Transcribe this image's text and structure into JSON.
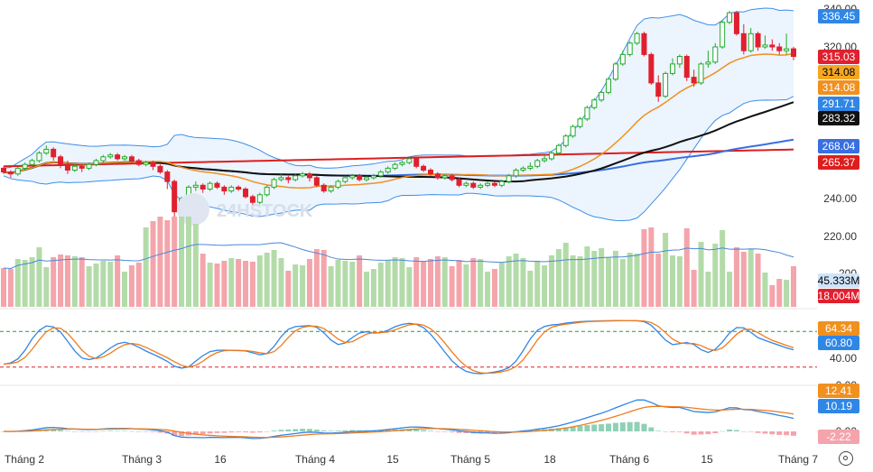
{
  "chart_data": {
    "type": "candlestick",
    "x_ticks": [
      "Tháng 2",
      "Tháng 3",
      "16",
      "Tháng 4",
      "15",
      "Tháng 5",
      "18",
      "Tháng 6",
      "15",
      "Tháng 7"
    ],
    "price_axis_ticks": [
      "340.00",
      "320.00",
      "240.00",
      "220.00"
    ],
    "watermark": "24HSTOCK",
    "colors": {
      "up": "#22ab2a",
      "down": "#e0202f",
      "bollinger": "#3d8fe8",
      "ma_orange": "#f0901e",
      "ma_black": "#111111",
      "ma_blue": "#3a6fe0",
      "ma_red": "#dd1e1e",
      "vol_up": "#b3dba9",
      "vol_down": "#f4a4ab",
      "vol_ma": "#4a88d8",
      "osc_blue": "#2f86e5",
      "osc_orange": "#f07b1c"
    },
    "price_labels": [
      {
        "value": "336.45",
        "bg": "#2f86e5",
        "fg": "#ffffff"
      },
      {
        "value": "315.03",
        "bg": "#e0202f",
        "fg": "#ffffff"
      },
      {
        "value": "314.08",
        "bg": "#f5a623",
        "fg": "#000000"
      },
      {
        "value": "314.08",
        "bg": "#f0901e",
        "fg": "#ffffff"
      },
      {
        "value": "291.71",
        "bg": "#2f86e5",
        "fg": "#ffffff"
      },
      {
        "value": "283.32",
        "bg": "#111111",
        "fg": "#ffffff"
      },
      {
        "value": "268.04",
        "bg": "#3a6fe0",
        "fg": "#ffffff"
      },
      {
        "value": "265.37",
        "bg": "#dd1e1e",
        "fg": "#ffffff"
      }
    ],
    "volume": {
      "axis_tick": "200",
      "labels": [
        {
          "value": "45.333M",
          "bg": "#cfe3fa",
          "fg": "#000000"
        },
        {
          "value": "18.004M",
          "bg": "#e0202f",
          "fg": "#ffffff"
        }
      ]
    },
    "stochastic": {
      "axis_ticks": [
        "40.00",
        "0.00"
      ],
      "labels": [
        {
          "value": "64.34",
          "bg": "#f0901e",
          "fg": "#ffffff"
        },
        {
          "value": "60.80",
          "bg": "#2f86e5",
          "fg": "#ffffff"
        }
      ]
    },
    "macd": {
      "axis_ticks": [
        "0.00"
      ],
      "labels": [
        {
          "value": "12.41",
          "bg": "#f0901e",
          "fg": "#ffffff"
        },
        {
          "value": "10.19",
          "bg": "#2f86e5",
          "fg": "#ffffff"
        },
        {
          "value": "-2.22",
          "bg": "#f4a4ab",
          "fg": "#ffffff"
        }
      ]
    },
    "candles": [
      [
        256,
        254,
        257,
        253
      ],
      [
        254,
        253,
        255,
        251
      ],
      [
        253,
        256,
        257,
        252
      ],
      [
        256,
        258,
        259,
        255
      ],
      [
        258,
        260,
        261,
        257
      ],
      [
        260,
        264,
        265,
        259
      ],
      [
        264,
        266,
        268,
        263
      ],
      [
        266,
        262,
        267,
        260
      ],
      [
        262,
        258,
        263,
        256
      ],
      [
        258,
        255,
        260,
        253
      ],
      [
        255,
        257,
        258,
        254
      ],
      [
        257,
        256,
        258,
        254
      ],
      [
        256,
        258,
        259,
        255
      ],
      [
        258,
        260,
        261,
        257
      ],
      [
        260,
        262,
        263,
        259
      ],
      [
        262,
        263,
        264,
        261
      ],
      [
        263,
        261,
        264,
        260
      ],
      [
        261,
        262,
        263,
        260
      ],
      [
        262,
        260,
        263,
        258
      ],
      [
        260,
        258,
        261,
        257
      ],
      [
        258,
        259,
        260,
        257
      ],
      [
        259,
        257,
        260,
        255
      ],
      [
        257,
        254,
        258,
        253
      ],
      [
        254,
        249,
        255,
        245
      ],
      [
        249,
        233,
        250,
        230
      ],
      [
        233,
        240,
        241,
        232
      ],
      [
        240,
        246,
        247,
        239
      ],
      [
        246,
        247,
        249,
        244
      ],
      [
        247,
        245,
        248,
        243
      ],
      [
        245,
        248,
        249,
        244
      ],
      [
        248,
        246,
        249,
        245
      ],
      [
        246,
        244,
        247,
        242
      ],
      [
        244,
        246,
        247,
        243
      ],
      [
        246,
        245,
        247,
        244
      ],
      [
        245,
        241,
        246,
        240
      ],
      [
        241,
        238,
        242,
        236
      ],
      [
        238,
        242,
        243,
        237
      ],
      [
        242,
        246,
        247,
        241
      ],
      [
        246,
        250,
        251,
        245
      ],
      [
        250,
        251,
        253,
        249
      ],
      [
        251,
        250,
        252,
        248
      ],
      [
        250,
        252,
        253,
        249
      ],
      [
        252,
        253,
        254,
        251
      ],
      [
        253,
        251,
        254,
        249
      ],
      [
        251,
        247,
        252,
        246
      ],
      [
        247,
        244,
        248,
        243
      ],
      [
        244,
        246,
        247,
        243
      ],
      [
        246,
        249,
        250,
        245
      ],
      [
        249,
        251,
        252,
        248
      ],
      [
        251,
        252,
        253,
        250
      ],
      [
        252,
        250,
        253,
        249
      ],
      [
        250,
        251,
        252,
        249
      ],
      [
        251,
        252,
        253,
        250
      ],
      [
        252,
        254,
        255,
        251
      ],
      [
        254,
        256,
        257,
        253
      ],
      [
        256,
        258,
        259,
        255
      ],
      [
        258,
        259,
        260,
        257
      ],
      [
        259,
        261,
        262,
        258
      ],
      [
        261,
        257,
        262,
        256
      ],
      [
        257,
        255,
        258,
        254
      ],
      [
        255,
        253,
        256,
        252
      ],
      [
        253,
        251,
        254,
        250
      ],
      [
        251,
        252,
        253,
        250
      ],
      [
        252,
        250,
        253,
        249
      ],
      [
        250,
        247,
        251,
        246
      ],
      [
        247,
        248,
        249,
        246
      ],
      [
        248,
        246,
        249,
        245
      ],
      [
        246,
        247,
        248,
        245
      ],
      [
        247,
        248,
        249,
        246
      ],
      [
        248,
        247,
        249,
        246
      ],
      [
        247,
        249,
        250,
        246
      ],
      [
        249,
        252,
        253,
        248
      ],
      [
        252,
        255,
        256,
        251
      ],
      [
        255,
        256,
        257,
        254
      ],
      [
        256,
        257,
        259,
        255
      ],
      [
        257,
        260,
        261,
        256
      ],
      [
        260,
        261,
        263,
        259
      ],
      [
        261,
        264,
        265,
        260
      ],
      [
        264,
        268,
        269,
        263
      ],
      [
        268,
        273,
        274,
        267
      ],
      [
        273,
        278,
        279,
        272
      ],
      [
        278,
        282,
        283,
        277
      ],
      [
        282,
        288,
        289,
        281
      ],
      [
        288,
        292,
        293,
        287
      ],
      [
        292,
        296,
        297,
        291
      ],
      [
        296,
        303,
        304,
        295
      ],
      [
        303,
        311,
        312,
        302
      ],
      [
        311,
        316,
        318,
        310
      ],
      [
        316,
        322,
        323,
        315
      ],
      [
        322,
        327,
        328,
        321
      ],
      [
        327,
        316,
        328,
        315
      ],
      [
        316,
        301,
        317,
        300
      ],
      [
        301,
        294,
        305,
        291
      ],
      [
        294,
        306,
        307,
        293
      ],
      [
        306,
        311,
        314,
        305
      ],
      [
        311,
        315,
        316,
        309
      ],
      [
        315,
        304,
        316,
        302
      ],
      [
        304,
        301,
        308,
        299
      ],
      [
        301,
        311,
        312,
        300
      ],
      [
        311,
        312,
        318,
        309
      ],
      [
        312,
        320,
        322,
        311
      ],
      [
        320,
        333,
        334,
        319
      ],
      [
        333,
        338,
        339,
        332
      ],
      [
        338,
        327,
        339,
        326
      ],
      [
        327,
        318,
        332,
        316
      ],
      [
        318,
        327,
        330,
        317
      ],
      [
        327,
        320,
        328,
        318
      ],
      [
        320,
        321,
        326,
        319
      ],
      [
        321,
        320,
        324,
        318
      ],
      [
        320,
        318,
        322,
        316
      ],
      [
        318,
        319,
        327,
        316
      ],
      [
        319,
        315,
        320,
        313
      ]
    ]
  }
}
